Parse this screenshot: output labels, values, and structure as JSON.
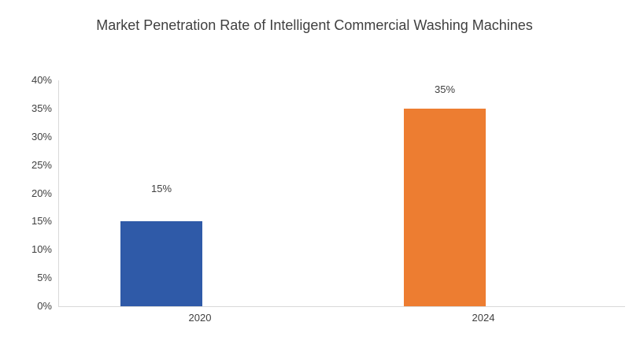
{
  "title": "Market Penetration Rate of Intelligent Commercial Washing Machines",
  "colors": {
    "text": "#404040",
    "axis_line": "#d9d9d9",
    "background": "#ffffff",
    "bar_2020": "#2f5aa8",
    "bar_2024": "#ed7d31"
  },
  "chart_data": {
    "type": "bar",
    "title": "Market Penetration Rate of Intelligent Commercial Washing Machines",
    "categories": [
      "2020",
      "2024"
    ],
    "values": [
      15,
      35
    ],
    "data_labels": [
      "15%",
      "35%"
    ],
    "bar_colors": [
      "#2f5aa8",
      "#ed7d31"
    ],
    "xlabel": "",
    "ylabel": "",
    "ylim": [
      0,
      40
    ],
    "ytick_step": 5,
    "ytick_labels": [
      "0%",
      "5%",
      "10%",
      "15%",
      "20%",
      "25%",
      "30%",
      "35%",
      "40%"
    ],
    "grid": false,
    "legend": false,
    "data_label_position": "outside-end"
  }
}
